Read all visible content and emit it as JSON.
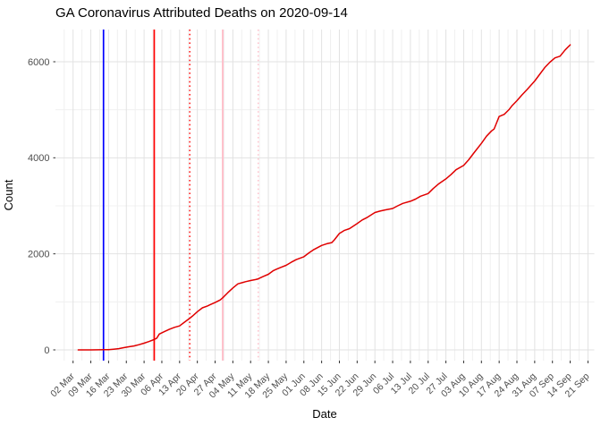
{
  "chart_data": {
    "type": "line",
    "title": "GA Coronavirus Attributed Deaths on 2020-09-14",
    "xlabel": "Date",
    "ylabel": "Count",
    "legend": "none",
    "grid": "on",
    "x_axis": {
      "tick_labels": [
        "02 Mar",
        "09 Mar",
        "16 Mar",
        "23 Mar",
        "30 Mar",
        "06 Apr",
        "13 Apr",
        "20 Apr",
        "27 Apr",
        "04 May",
        "11 May",
        "18 May",
        "25 May",
        "01 Jun",
        "08 Jun",
        "15 Jun",
        "22 Jun",
        "29 Jun",
        "06 Jul",
        "13 Jul",
        "20 Jul",
        "27 Jul",
        "03 Aug",
        "10 Aug",
        "17 Aug",
        "24 Aug",
        "31 Aug",
        "07 Sep",
        "14 Sep",
        "21 Sep"
      ],
      "tick_interval": "1 week",
      "range": [
        "2020-02-24",
        "2020-09-23"
      ]
    },
    "y_axis": {
      "ticks": [
        0,
        2000,
        4000,
        6000
      ],
      "tick_labels": [
        "0",
        "2000",
        "4000",
        "6000"
      ],
      "minor_ticks": [
        1000,
        3000,
        5000
      ],
      "range": [
        -220,
        6670
      ]
    },
    "vlines": [
      {
        "name": "vline-blue-solid-2020-03-14",
        "date": "2020-03-14",
        "color": "#0000ff",
        "style": "solid"
      },
      {
        "name": "vline-red-solid-2020-04-03",
        "date": "2020-04-03",
        "color": "#ff0000",
        "style": "solid"
      },
      {
        "name": "vline-red-dotted-2020-04-17",
        "date": "2020-04-17",
        "color": "#ff0000",
        "style": "dotted"
      },
      {
        "name": "vline-pink-solid-2020-04-30",
        "date": "2020-04-30",
        "color": "#ffc0cb",
        "style": "solid"
      },
      {
        "name": "vline-pink-dotted-2020-05-14",
        "date": "2020-05-14",
        "color": "#ffc0cb",
        "style": "dotted"
      }
    ],
    "series": [
      {
        "name": "cumulative-deaths",
        "color": "#e00000",
        "dates": [
          "2020-03-04",
          "2020-03-09",
          "2020-03-12",
          "2020-03-14",
          "2020-03-16",
          "2020-03-18",
          "2020-03-20",
          "2020-03-22",
          "2020-03-24",
          "2020-03-26",
          "2020-03-28",
          "2020-03-30",
          "2020-04-01",
          "2020-04-03",
          "2020-04-04",
          "2020-04-05",
          "2020-04-07",
          "2020-04-09",
          "2020-04-11",
          "2020-04-13",
          "2020-04-15",
          "2020-04-17",
          "2020-04-18",
          "2020-04-20",
          "2020-04-22",
          "2020-04-24",
          "2020-04-25",
          "2020-04-27",
          "2020-04-29",
          "2020-04-30",
          "2020-05-02",
          "2020-05-04",
          "2020-05-06",
          "2020-05-08",
          "2020-05-09",
          "2020-05-11",
          "2020-05-13",
          "2020-05-14",
          "2020-05-16",
          "2020-05-18",
          "2020-05-20",
          "2020-05-21",
          "2020-05-23",
          "2020-05-25",
          "2020-05-27",
          "2020-05-29",
          "2020-06-01",
          "2020-06-03",
          "2020-06-05",
          "2020-06-08",
          "2020-06-10",
          "2020-06-12",
          "2020-06-13",
          "2020-06-15",
          "2020-06-17",
          "2020-06-19",
          "2020-06-22",
          "2020-06-24",
          "2020-06-26",
          "2020-06-29",
          "2020-07-01",
          "2020-07-03",
          "2020-07-06",
          "2020-07-08",
          "2020-07-10",
          "2020-07-13",
          "2020-07-15",
          "2020-07-17",
          "2020-07-20",
          "2020-07-22",
          "2020-07-24",
          "2020-07-27",
          "2020-07-29",
          "2020-07-31",
          "2020-08-03",
          "2020-08-05",
          "2020-08-07",
          "2020-08-10",
          "2020-08-12",
          "2020-08-14",
          "2020-08-15",
          "2020-08-17",
          "2020-08-19",
          "2020-08-21",
          "2020-08-22",
          "2020-08-24",
          "2020-08-26",
          "2020-08-28",
          "2020-08-31",
          "2020-09-02",
          "2020-09-04",
          "2020-09-06",
          "2020-09-08",
          "2020-09-10",
          "2020-09-12",
          "2020-09-14"
        ],
        "values": [
          0,
          0,
          1,
          3,
          6,
          14,
          26,
          46,
          66,
          82,
          108,
          140,
          176,
          218,
          244,
          330,
          380,
          430,
          470,
          500,
          580,
          660,
          700,
          795,
          875,
          915,
          940,
          985,
          1040,
          1085,
          1190,
          1290,
          1375,
          1405,
          1420,
          1445,
          1465,
          1480,
          1530,
          1575,
          1650,
          1675,
          1720,
          1760,
          1825,
          1880,
          1940,
          2020,
          2090,
          2175,
          2210,
          2235,
          2290,
          2425,
          2490,
          2525,
          2630,
          2705,
          2760,
          2860,
          2890,
          2915,
          2945,
          3000,
          3050,
          3095,
          3140,
          3200,
          3255,
          3360,
          3450,
          3560,
          3650,
          3750,
          3840,
          3960,
          4100,
          4300,
          4450,
          4560,
          4600,
          4860,
          4905,
          5010,
          5080,
          5190,
          5310,
          5420,
          5600,
          5740,
          5880,
          5990,
          6080,
          6115,
          6245,
          6353
        ]
      }
    ],
    "colors": {
      "series": "#e00000",
      "grid_major": "#e2e2e2",
      "grid_minor": "#f0f0f0",
      "tick_mark": "#333333",
      "tick_text": "#4d4d4d",
      "title_text": "#000000",
      "axis_label_text": "#000000",
      "background": "#ffffff"
    },
    "final_value": 6353
  }
}
